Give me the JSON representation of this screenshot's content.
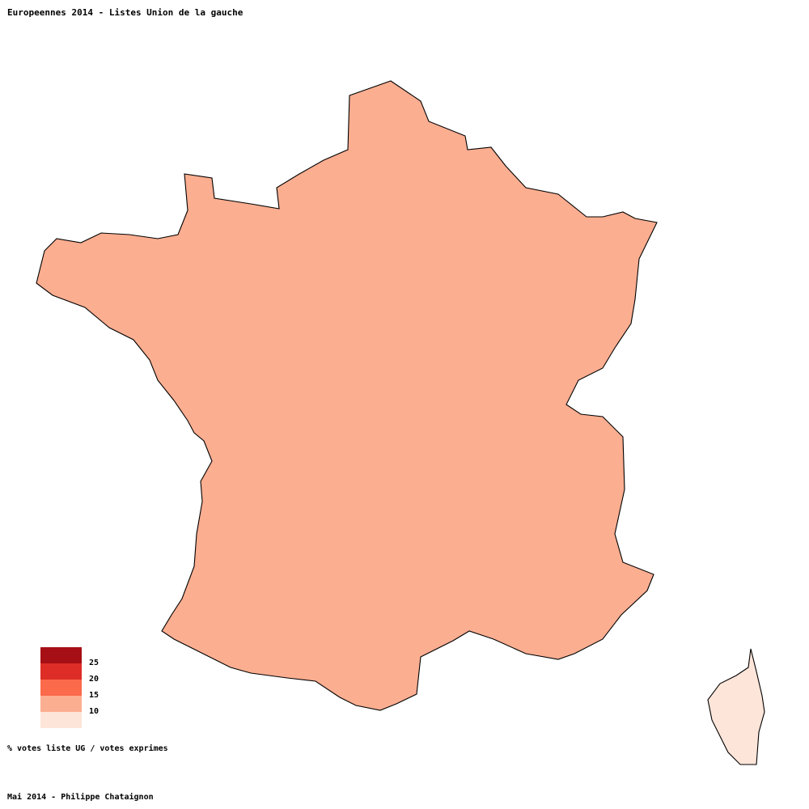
{
  "title": "Europeennes 2014 - Listes Union de la gauche",
  "legend": {
    "classes": [
      {
        "label": "25",
        "color": "#a50f15"
      },
      {
        "label": "20",
        "color": "#de2d26"
      },
      {
        "label": "15",
        "color": "#fb6a4a"
      },
      {
        "label": "10",
        "color": "#fcae91"
      },
      {
        "label": "",
        "color": "#fee5d9"
      }
    ]
  },
  "unit_note": "% votes liste UG / votes exprimes",
  "credit": "Mai 2014 - Philippe Chataignon",
  "colors": {
    "c_lightest": "#fee5d9",
    "c_light": "#fcae91",
    "c_mid": "#fb6a4a",
    "c_strong": "#de2d26",
    "c_darkest": "#a50f15",
    "border": "#000000"
  }
}
